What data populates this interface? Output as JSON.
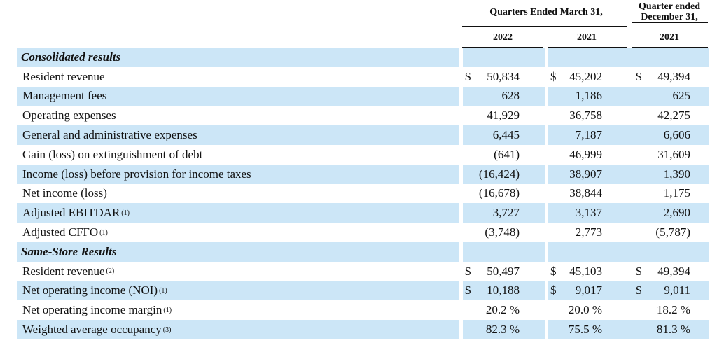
{
  "header": {
    "group_label": "Quarters Ended March 31,",
    "q4_label_line1": "Quarter ended",
    "q4_label_line2": "December 31,",
    "years": [
      "2022",
      "2021",
      "2021"
    ]
  },
  "sections": [
    {
      "title": "Consolidated results",
      "rows": [
        {
          "label": "Resident revenue",
          "note": "",
          "dollar": true,
          "values": [
            "50,834",
            "45,202",
            "49,394"
          ]
        },
        {
          "label": "Management fees",
          "note": "",
          "dollar": false,
          "values": [
            "628",
            "1,186",
            "625"
          ]
        },
        {
          "label": "Operating expenses",
          "note": "",
          "dollar": false,
          "values": [
            "41,929",
            "36,758",
            "42,275"
          ]
        },
        {
          "label": "General and administrative expenses",
          "note": "",
          "dollar": false,
          "values": [
            "6,445",
            "7,187",
            "6,606"
          ]
        },
        {
          "label": "Gain (loss) on extinguishment of debt",
          "note": "",
          "dollar": false,
          "values": [
            "(641)",
            "46,999",
            "31,609"
          ]
        },
        {
          "label": "Income (loss) before provision for income taxes",
          "note": "",
          "dollar": false,
          "values": [
            "(16,424)",
            "38,907",
            "1,390"
          ]
        },
        {
          "label": "Net income (loss)",
          "note": "",
          "dollar": false,
          "values": [
            "(16,678)",
            "38,844",
            "1,175"
          ]
        },
        {
          "label": "Adjusted EBITDAR",
          "note": "(1)",
          "dollar": false,
          "values": [
            "3,727",
            "3,137",
            "2,690"
          ]
        },
        {
          "label": "Adjusted CFFO",
          "note": "(1)",
          "dollar": false,
          "values": [
            "(3,748)",
            "2,773",
            "(5,787)"
          ]
        }
      ]
    },
    {
      "title": "Same-Store Results",
      "rows": [
        {
          "label": "Resident revenue",
          "note": "(2)",
          "dollar": true,
          "values": [
            "50,497",
            "45,103",
            "49,394"
          ]
        },
        {
          "label": "Net operating income (NOI)",
          "note": "(1)",
          "dollar": true,
          "values": [
            "10,188",
            "9,017",
            "9,011"
          ]
        },
        {
          "label": "Net operating income margin",
          "note": "(1)",
          "dollar": false,
          "values": [
            "20.2 %",
            "20.0 %",
            "18.2 %"
          ]
        },
        {
          "label": "Weighted average occupancy",
          "note": "(3)",
          "dollar": false,
          "values": [
            "82.3 %",
            "75.5 %",
            "81.3 %"
          ]
        }
      ]
    }
  ],
  "currency_symbol": "$"
}
